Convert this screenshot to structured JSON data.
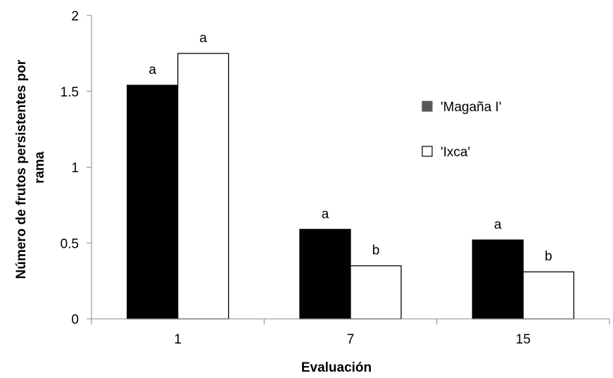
{
  "chart_data": {
    "type": "bar",
    "title": "",
    "xlabel": "Evaluación",
    "ylabel": "Número de frutos persistentes por rama",
    "ylabel_lines": [
      "Número de frutos persistentes por",
      "rama"
    ],
    "ylim": [
      0,
      2
    ],
    "yticks": [
      "0",
      "0.5",
      "1",
      "1.5",
      "2"
    ],
    "categories": [
      "1",
      "7",
      "15"
    ],
    "series": [
      {
        "name": "'Magaña I'",
        "color": "#000000",
        "legend_color": "#595959",
        "values": [
          1.54,
          0.59,
          0.52
        ],
        "labels": [
          "a",
          "a",
          "a"
        ]
      },
      {
        "name": "'Ixca'",
        "color": "#ffffff",
        "legend_color": "#ffffff",
        "values": [
          1.75,
          0.35,
          0.31
        ],
        "labels": [
          "a",
          "b",
          "b"
        ]
      }
    ],
    "legend_position": "right",
    "grid": false
  }
}
